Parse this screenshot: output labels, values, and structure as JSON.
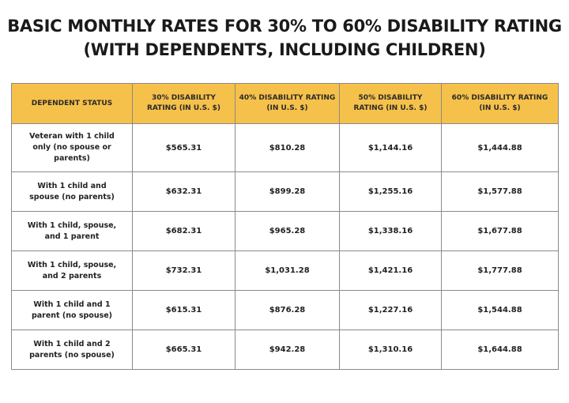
{
  "title": {
    "line1": "BASIC MONTHLY RATES FOR 30% TO 60% DISABILITY RATING",
    "line2": "(WITH DEPENDENTS, INCLUDING CHILDREN)"
  },
  "table": {
    "headers": [
      "DEPENDENT STATUS",
      "30% DISABILITY RATING (IN U.S. $)",
      "40% DISABILITY RATING (IN U.S. $)",
      "50% DISABILITY RATING (IN U.S. $)",
      "60% DISABILITY RATING (IN U.S. $)"
    ],
    "rows": [
      {
        "status": "Veteran with 1 child only (no spouse or parents)",
        "values": [
          "$565.31",
          "$810.28",
          "$1,144.16",
          "$1,444.88"
        ]
      },
      {
        "status": "With 1 child and spouse (no parents)",
        "values": [
          "$632.31",
          "$899.28",
          "$1,255.16",
          "$1,577.88"
        ]
      },
      {
        "status": "With 1 child, spouse, and 1 parent",
        "values": [
          "$682.31",
          "$965.28",
          "$1,338.16",
          "$1,677.88"
        ]
      },
      {
        "status": "With 1 child, spouse, and 2 parents",
        "values": [
          "$732.31",
          "$1,031.28",
          "$1,421.16",
          "$1,777.88"
        ]
      },
      {
        "status": "With 1 child and 1 parent (no spouse)",
        "values": [
          "$615.31",
          "$876.28",
          "$1,227.16",
          "$1,544.88"
        ]
      },
      {
        "status": "With 1 child and 2 parents (no spouse)",
        "values": [
          "$665.31",
          "$942.28",
          "$1,310.16",
          "$1,644.88"
        ]
      }
    ]
  },
  "colors": {
    "header_bg": "#f6c14a",
    "border": "#8a8a8a",
    "text": "#1f1f1f"
  }
}
